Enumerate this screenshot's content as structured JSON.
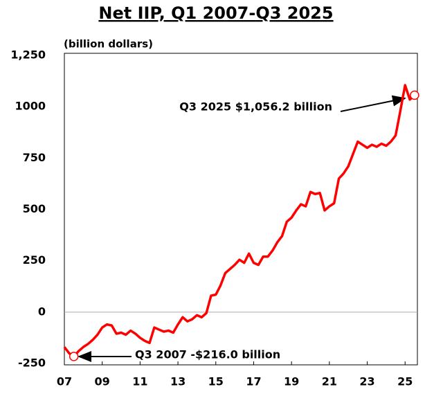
{
  "chart_data": {
    "type": "line",
    "title": "Net IIP, Q1 2007-Q3 2025",
    "y_label": "(billion dollars)",
    "x": [
      7,
      7.25,
      7.5,
      7.75,
      8,
      8.25,
      8.5,
      8.75,
      9,
      9.25,
      9.5,
      9.75,
      10,
      10.25,
      10.5,
      10.75,
      11,
      11.25,
      11.5,
      11.75,
      12,
      12.25,
      12.5,
      12.75,
      13,
      13.25,
      13.5,
      13.75,
      14,
      14.25,
      14.5,
      14.75,
      15,
      15.25,
      15.5,
      15.75,
      16,
      16.25,
      16.5,
      16.75,
      17,
      17.25,
      17.5,
      17.75,
      18,
      18.25,
      18.5,
      18.75,
      19,
      19.25,
      19.5,
      19.75,
      20,
      20.25,
      20.5,
      20.75,
      21,
      21.25,
      21.5,
      21.75,
      22,
      22.25,
      22.5,
      22.75,
      23,
      23.25,
      23.5,
      23.75,
      24,
      24.25,
      24.5,
      24.75,
      25,
      25.25,
      25.5
    ],
    "series": [
      {
        "name": "Net IIP",
        "color": "#ff0000",
        "values": [
          -170,
          -200,
          -216,
          -190,
          -170,
          -155,
          -135,
          -110,
          -75,
          -60,
          -65,
          -105,
          -100,
          -110,
          -90,
          -105,
          -125,
          -140,
          -150,
          -75,
          -85,
          -95,
          -90,
          -100,
          -60,
          -25,
          -45,
          -35,
          -15,
          -25,
          -5,
          80,
          85,
          130,
          190,
          210,
          230,
          255,
          240,
          285,
          240,
          230,
          270,
          270,
          300,
          340,
          370,
          440,
          460,
          495,
          525,
          515,
          585,
          575,
          580,
          495,
          515,
          530,
          650,
          675,
          710,
          770,
          830,
          815,
          800,
          815,
          805,
          820,
          810,
          830,
          860,
          980,
          1105,
          1035,
          1056.2
        ]
      }
    ],
    "xlim": [
      7,
      25.65
    ],
    "ylim": [
      -250,
      1250
    ],
    "xticks": [
      {
        "value": 7,
        "label": "07"
      },
      {
        "value": 9,
        "label": "09"
      },
      11,
      13,
      15,
      17,
      19,
      21,
      23,
      25
    ],
    "yticks": [
      -250,
      0,
      250,
      500,
      750,
      1000,
      {
        "value": 1250,
        "label": "1,250"
      }
    ],
    "yticks_fix": null,
    "annotations": [
      "Q3 2025 $1,056.2 billion",
      "Q3 2007 -$216.0 billion"
    ]
  }
}
